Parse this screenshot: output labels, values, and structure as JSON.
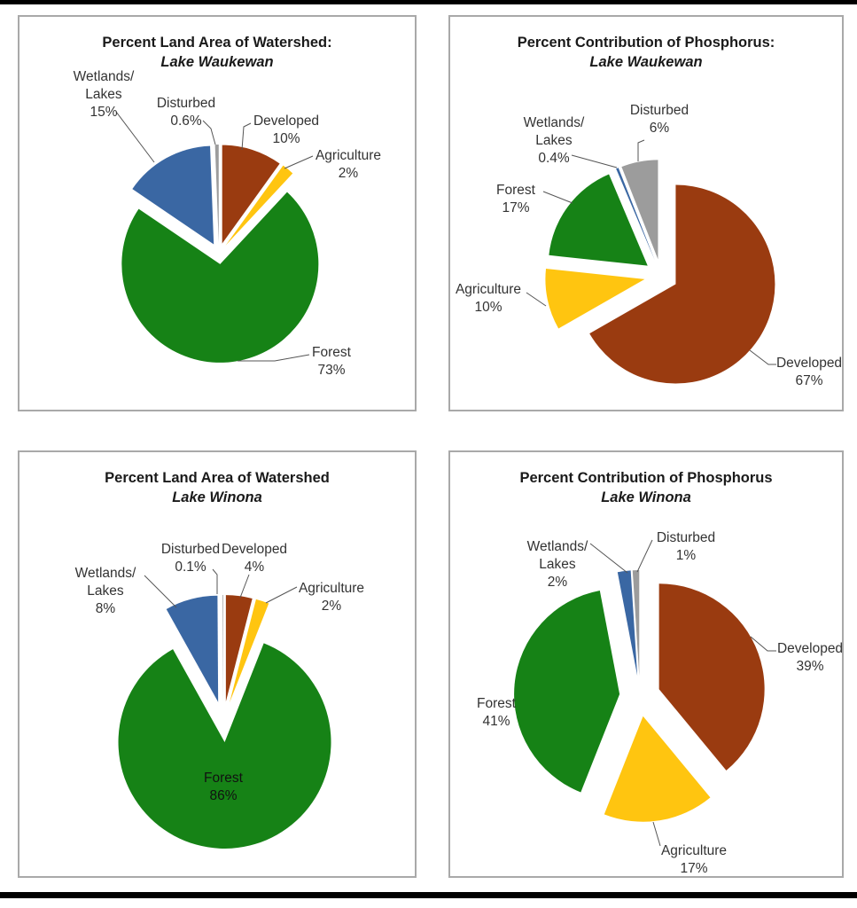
{
  "page": {
    "background": "#FFFFFF",
    "top_rule_color": "#000000",
    "bottom_rule_color": "#000000"
  },
  "palette": {
    "developed": "#9A3B10",
    "agriculture": "#FFC510",
    "forest": "#168216",
    "wetlands_lakes": "#3A67A3",
    "disturbed": "#9C9C9C",
    "title_text": "#1A1A1A",
    "label_text": "#333333",
    "leader_line": "#555555",
    "panel_border": "#A9A9A9"
  },
  "chart_data": [
    {
      "type": "pie",
      "title": "Percent Land Area of Watershed:",
      "subtitle": "Lake Waukewan",
      "exploded": true,
      "labels_on_chart": true,
      "legend": "none",
      "slices": [
        {
          "label": "Developed",
          "value": 10,
          "display": "10%",
          "color_key": "developed"
        },
        {
          "label": "Agriculture",
          "value": 2,
          "display": "2%",
          "color_key": "agriculture"
        },
        {
          "label": "Forest",
          "value": 73,
          "display": "73%",
          "color_key": "forest"
        },
        {
          "label": "Wetlands/Lakes",
          "value": 15,
          "display": "15%",
          "color_key": "wetlands_lakes"
        },
        {
          "label": "Disturbed",
          "value": 0.6,
          "display": "0.6%",
          "color_key": "disturbed"
        }
      ]
    },
    {
      "type": "pie",
      "title": "Percent Contribution of Phosphorus:",
      "subtitle": "Lake Waukewan",
      "exploded": true,
      "labels_on_chart": true,
      "legend": "none",
      "slices": [
        {
          "label": "Developed",
          "value": 67,
          "display": "67%",
          "color_key": "developed"
        },
        {
          "label": "Agriculture",
          "value": 10,
          "display": "10%",
          "color_key": "agriculture"
        },
        {
          "label": "Forest",
          "value": 17,
          "display": "17%",
          "color_key": "forest"
        },
        {
          "label": "Wetlands/Lakes",
          "value": 0.4,
          "display": "0.4%",
          "color_key": "wetlands_lakes"
        },
        {
          "label": "Disturbed",
          "value": 6,
          "display": "6%",
          "color_key": "disturbed"
        }
      ]
    },
    {
      "type": "pie",
      "title": "Percent Land Area of Watershed",
      "subtitle": "Lake Winona",
      "exploded": true,
      "labels_on_chart": true,
      "legend": "none",
      "slices": [
        {
          "label": "Developed",
          "value": 4,
          "display": "4%",
          "color_key": "developed"
        },
        {
          "label": "Agriculture",
          "value": 2,
          "display": "2%",
          "color_key": "agriculture"
        },
        {
          "label": "Forest",
          "value": 86,
          "display": "86%",
          "color_key": "forest"
        },
        {
          "label": "Wetlands/Lakes",
          "value": 8,
          "display": "8%",
          "color_key": "wetlands_lakes"
        },
        {
          "label": "Disturbed",
          "value": 0.1,
          "display": "0.1%",
          "color_key": "disturbed"
        }
      ]
    },
    {
      "type": "pie",
      "title": "Percent Contribution of Phosphorus",
      "subtitle": "Lake Winona",
      "exploded": true,
      "labels_on_chart": true,
      "legend": "none",
      "slices": [
        {
          "label": "Developed",
          "value": 39,
          "display": "39%",
          "color_key": "developed"
        },
        {
          "label": "Agriculture",
          "value": 17,
          "display": "17%",
          "color_key": "agriculture"
        },
        {
          "label": "Forest",
          "value": 41,
          "display": "41%",
          "color_key": "forest"
        },
        {
          "label": "Wetlands/Lakes",
          "value": 2,
          "display": "2%",
          "color_key": "wetlands_lakes"
        },
        {
          "label": "Disturbed",
          "value": 1,
          "display": "1%",
          "color_key": "disturbed"
        }
      ]
    }
  ]
}
